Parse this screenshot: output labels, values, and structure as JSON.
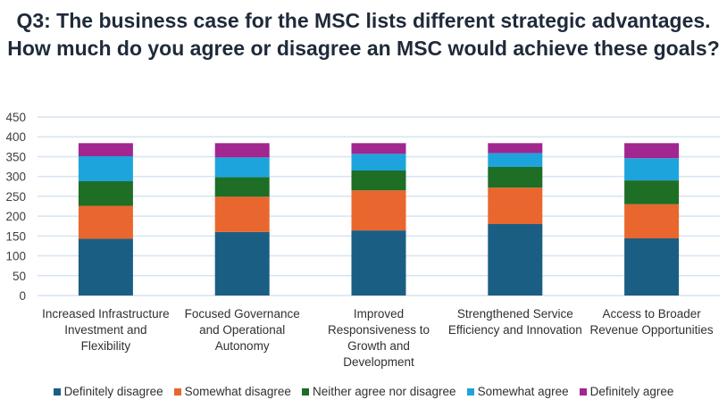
{
  "chart_data": {
    "type": "bar",
    "stacked": true,
    "title": "Q3: The business case for the MSC lists different strategic advantages. How much do you agree or disagree an MSC would achieve these goals?",
    "categories": [
      "Increased Infrastructure Investment and Flexibility",
      "Focused Governance and Operational Autonomy",
      "Improved Responsiveness to Growth and Development",
      "Strengthened Service Efficiency and Innovation",
      "Access to Broader Revenue Opportunities"
    ],
    "series": [
      {
        "name": "Definitely disagree",
        "color": "#1a5e84",
        "values": [
          143,
          160,
          164,
          180,
          144
        ]
      },
      {
        "name": "Somewhat disagree",
        "color": "#e9672e",
        "values": [
          83,
          89,
          101,
          92,
          86
        ]
      },
      {
        "name": "Neither agree nor disagree",
        "color": "#1e6e26",
        "values": [
          62,
          49,
          50,
          52,
          60
        ]
      },
      {
        "name": "Somewhat agree",
        "color": "#1ea4dc",
        "values": [
          63,
          50,
          42,
          35,
          56
        ]
      },
      {
        "name": "Definitely agree",
        "color": "#a1268f",
        "values": [
          33,
          36,
          27,
          25,
          38
        ]
      }
    ],
    "ylim": [
      0,
      450
    ],
    "yticks": [
      "0",
      "50",
      "100",
      "150",
      "200",
      "250",
      "300",
      "350",
      "400",
      "450"
    ],
    "grid": true,
    "legend": "bottom"
  }
}
